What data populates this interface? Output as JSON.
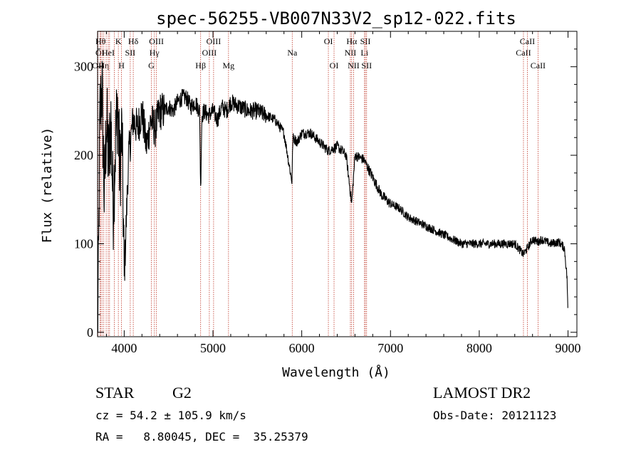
{
  "chart_data": {
    "type": "line",
    "title": "spec-56255-VB007N33V2_sp12-022.fits",
    "xlabel": "Wavelength (Å)",
    "ylabel": "Flux (relative)",
    "xlim": [
      3700,
      9100
    ],
    "ylim": [
      -5,
      340
    ],
    "xticks": [
      4000,
      5000,
      6000,
      7000,
      8000,
      9000
    ],
    "yticks": [
      0,
      100,
      200,
      300
    ],
    "grid": false,
    "series": [
      {
        "x": [
          3700,
          3710,
          3725,
          3750,
          3775,
          3800,
          3825,
          3850,
          3875,
          3900,
          3925,
          3950,
          3975,
          4000,
          4050,
          4100,
          4150,
          4200,
          4250,
          4300,
          4350,
          4400,
          4450,
          4500,
          4550,
          4600,
          4650,
          4700,
          4750,
          4800,
          4850,
          4861,
          4875,
          4900,
          4950,
          5000,
          5050,
          5100,
          5150,
          5200,
          5300,
          5400,
          5500,
          5600,
          5700,
          5800,
          5890,
          5900,
          5950,
          6000,
          6100,
          6200,
          6300,
          6400,
          6500,
          6563,
          6600,
          6700,
          6800,
          6900,
          7000,
          7100,
          7200,
          7300,
          7400,
          7500,
          7600,
          7700,
          7800,
          7900,
          8000,
          8100,
          8200,
          8300,
          8400,
          8498,
          8542,
          8600,
          8662,
          8700,
          8800,
          8900,
          8960,
          8990,
          9000
        ],
        "y": [
          5,
          60,
          240,
          280,
          150,
          240,
          190,
          240,
          140,
          210,
          260,
          180,
          230,
          60,
          200,
          240,
          230,
          250,
          210,
          240,
          230,
          250,
          250,
          255,
          250,
          260,
          265,
          265,
          255,
          260,
          250,
          160,
          245,
          250,
          245,
          250,
          240,
          255,
          250,
          260,
          255,
          250,
          250,
          245,
          240,
          225,
          170,
          220,
          215,
          225,
          225,
          215,
          205,
          210,
          200,
          145,
          200,
          195,
          175,
          155,
          145,
          140,
          130,
          125,
          120,
          115,
          110,
          105,
          100,
          100,
          100,
          100,
          100,
          100,
          100,
          88,
          95,
          105,
          102,
          105,
          100,
          102,
          95,
          60,
          15
        ]
      }
    ],
    "lines": [
      {
        "wl": 3705,
        "label": "OII",
        "row": 3
      },
      {
        "wl": 3727,
        "label": "OI",
        "row": 2
      },
      {
        "wl": 3734,
        "label": "Hθ",
        "row": 1
      },
      {
        "wl": 3750,
        "label": "",
        "row": 0
      },
      {
        "wl": 3770,
        "label": "Hη",
        "row": 3
      },
      {
        "wl": 3797,
        "label": "",
        "row": 0
      },
      {
        "wl": 3820,
        "label": "HeI",
        "row": 2
      },
      {
        "wl": 3835,
        "label": "",
        "row": 0
      },
      {
        "wl": 3889,
        "label": "",
        "row": 0
      },
      {
        "wl": 3934,
        "label": "K",
        "row": 1
      },
      {
        "wl": 3969,
        "label": "H",
        "row": 3
      },
      {
        "wl": 4068,
        "label": "SII",
        "row": 2
      },
      {
        "wl": 4102,
        "label": "Hδ",
        "row": 1
      },
      {
        "wl": 4305,
        "label": "G",
        "row": 3
      },
      {
        "wl": 4340,
        "label": "Hγ",
        "row": 2
      },
      {
        "wl": 4363,
        "label": "OIII",
        "row": 1
      },
      {
        "wl": 4861,
        "label": "Hβ",
        "row": 3
      },
      {
        "wl": 4959,
        "label": "OIII",
        "row": 2
      },
      {
        "wl": 5007,
        "label": "OIII",
        "row": 1
      },
      {
        "wl": 5175,
        "label": "Mg",
        "row": 3
      },
      {
        "wl": 5893,
        "label": "Na",
        "row": 2
      },
      {
        "wl": 6300,
        "label": "OI",
        "row": 1
      },
      {
        "wl": 6364,
        "label": "OI",
        "row": 3
      },
      {
        "wl": 6548,
        "label": "NII",
        "row": 2
      },
      {
        "wl": 6563,
        "label": "Hα",
        "row": 1
      },
      {
        "wl": 6584,
        "label": "NII",
        "row": 3
      },
      {
        "wl": 6707,
        "label": "Li",
        "row": 2
      },
      {
        "wl": 6717,
        "label": "SII",
        "row": 1
      },
      {
        "wl": 6731,
        "label": "SII",
        "row": 3
      },
      {
        "wl": 8498,
        "label": "CaII",
        "row": 2
      },
      {
        "wl": 8542,
        "label": "CaII",
        "row": 1
      },
      {
        "wl": 8662,
        "label": "CaII",
        "row": 3
      }
    ]
  },
  "info": {
    "class": "STAR",
    "subclass": "G2",
    "survey": "LAMOST DR2",
    "redshift": "cz = 54.2 ± 105.9 km/s",
    "obs_date": "Obs-Date: 20121123",
    "coords": "RA =   8.80045, DEC =  35.25379"
  },
  "colors": {
    "spectrum": "#000000",
    "line_marker": "#c0392b"
  }
}
